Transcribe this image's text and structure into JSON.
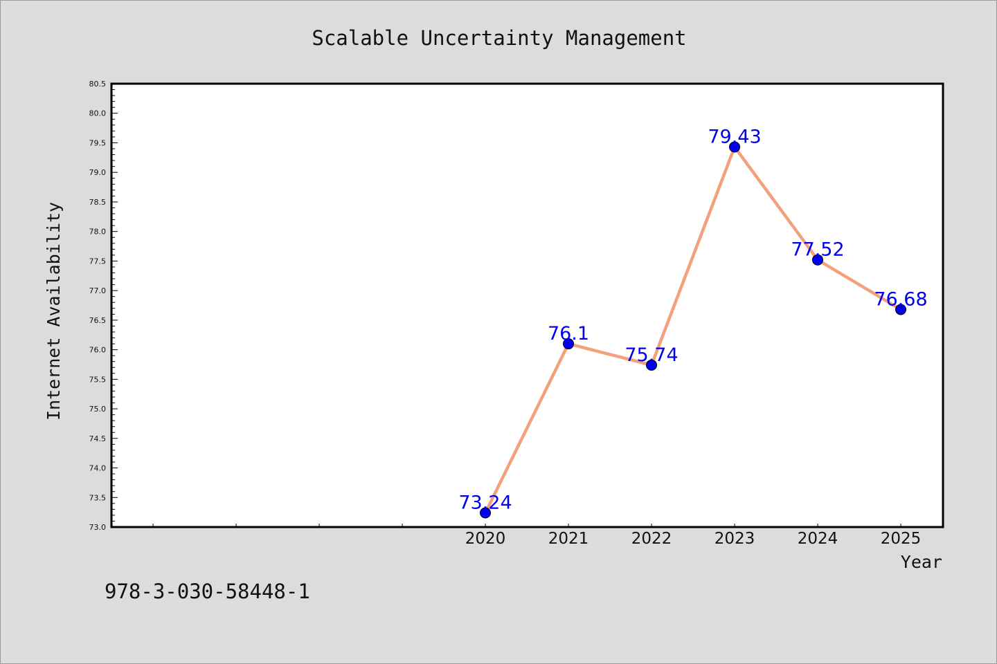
{
  "chart_data": {
    "type": "line",
    "title": "Scalable Uncertainty Management",
    "xlabel": "Year",
    "ylabel": "Internet Availability",
    "categories": [
      "2020",
      "2021",
      "2022",
      "2023",
      "2024",
      "2025"
    ],
    "series": [
      {
        "values": [
          73.24,
          76.1,
          75.74,
          79.43,
          77.52,
          76.68
        ],
        "data_labels": [
          "73.24",
          "76.1",
          "75.74",
          "79.43",
          "77.52",
          "76.68"
        ]
      }
    ],
    "ylim": [
      73.0,
      80.5
    ],
    "yticks": [
      "73.0",
      "73.5",
      "74.0",
      "74.5",
      "75.0",
      "75.5",
      "76.0",
      "76.5",
      "77.0",
      "77.5",
      "78.0",
      "78.5",
      "79.0",
      "79.5",
      "80.0",
      "80.5"
    ],
    "x_slots_before_data": 4,
    "grid": false,
    "legend": "none",
    "line_color": "#f4a07c",
    "marker_color": "#0000ee",
    "label_color": "#0000ee"
  },
  "footnote": "978-3-030-58448-1"
}
